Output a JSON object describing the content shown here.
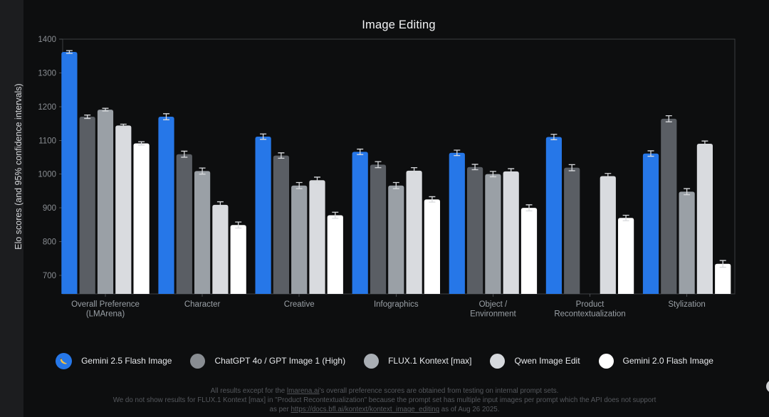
{
  "page": {
    "title": "Image Editing"
  },
  "chart_data": {
    "type": "bar",
    "title": "Image Editing",
    "xlabel": "",
    "ylabel": "Elo scores (and 95% confidence intervals)",
    "ylim": [
      645,
      1400
    ],
    "yticks": [
      700,
      800,
      900,
      1000,
      1100,
      1200,
      1300,
      1400
    ],
    "grid": false,
    "legend_position": "bottom",
    "error_bars": "95% confidence intervals",
    "categories": [
      [
        "Overall Preference",
        "(LMArena)"
      ],
      [
        "Character"
      ],
      [
        "Creative"
      ],
      [
        "Infographics"
      ],
      [
        "Object /",
        "Environment"
      ],
      [
        "Product",
        "Recontextualization"
      ],
      [
        "Stylization"
      ]
    ],
    "series": [
      {
        "name": "Gemini 2.5 Flash Image",
        "color": "#2677e8",
        "legend_color": "#2677e8",
        "legend_icon": "banana-icon",
        "values": [
          1362,
          1170,
          1111,
          1066,
          1063,
          1110,
          1061
        ],
        "ci": [
          4,
          9,
          8,
          8,
          8,
          8,
          8
        ]
      },
      {
        "name": "ChatGPT 4o / GPT Image 1 (High)",
        "color": "#5a5e64",
        "legend_color": "#898d92",
        "legend_icon": "circle",
        "values": [
          1170,
          1059,
          1055,
          1028,
          1021,
          1019,
          1164
        ],
        "ci": [
          5,
          9,
          8,
          9,
          8,
          9,
          9
        ]
      },
      {
        "name": "FLUX.1 Kontext [max]",
        "color": "#9aa0a6",
        "legend_color": "#a9aeb4",
        "legend_icon": "circle",
        "values": [
          1191,
          1009,
          966,
          966,
          1000,
          null,
          948
        ],
        "ci": [
          4,
          9,
          9,
          9,
          8,
          null,
          9
        ]
      },
      {
        "name": "Qwen Image Edit",
        "color": "#d9dbdf",
        "legend_color": "#d6d9dd",
        "legend_icon": "circle",
        "values": [
          1144,
          909,
          982,
          1010,
          1008,
          994,
          1090
        ],
        "ci": [
          4,
          9,
          9,
          9,
          8,
          8,
          8
        ]
      },
      {
        "name": "Gemini 2.0 Flash Image",
        "color": "#ffffff",
        "legend_color": "#ffffff",
        "legend_icon": "circle",
        "values": [
          1091,
          849,
          878,
          925,
          900,
          870,
          734
        ],
        "ci": [
          5,
          9,
          9,
          8,
          9,
          8,
          10
        ]
      }
    ]
  },
  "footer": {
    "line1_pre": "All results except for the ",
    "line1_link": "lmarena.ai",
    "line1_post": "'s overall preference scores are obtained from testing on internal prompt sets.",
    "line2": "We do not show results for FLUX.1 Kontext [max] in \"Product Recontextualization\" because the prompt set has multiple input images per prompt which the API does not support",
    "line3_pre": "as per ",
    "line3_link": "https://docs.bfl.ai/kontext/kontext_image_editing",
    "line3_post": " as of Aug 26 2025."
  },
  "colors": {
    "background": "#0d0e0f",
    "left_strip": "#1c1d1f",
    "plot_border": "#3b3e42",
    "tick": "#4a4d51",
    "tick_label": "#8a8e93",
    "x_label": "#9aa0a6",
    "y_axis_title": "#d5d7da",
    "error_bar": "#d7d9dc",
    "title": "#f2f3f5",
    "legend_text": "#e8eaed",
    "footer_text": "#55585d",
    "banana": "#f6c344"
  }
}
